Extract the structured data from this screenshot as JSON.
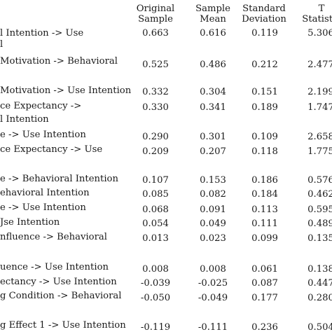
{
  "header": {
    "col1": [
      "Original",
      "Sample"
    ],
    "col2": [
      "Sample",
      "Mean"
    ],
    "col3": [
      "Standard",
      "Deviation"
    ],
    "col4": [
      "T",
      "Statistic"
    ]
  },
  "rows": [
    {
      "label": [
        "l       Intention   ->   Use",
        "l"
      ],
      "v": [
        "0.663",
        "0.616",
        "0.119",
        "5.306"
      ]
    },
    {
      "label": [
        "Motivation -> Behavioral"
      ],
      "v": [
        "0.525",
        "0.486",
        "0.212",
        "2.477"
      ]
    },
    {
      "label": [
        "Motivation -> Use Intention"
      ],
      "v": [
        "0.332",
        "0.304",
        "0.151",
        "2.199"
      ]
    },
    {
      "label": [
        "ce      Expectancy      ->",
        "l Intention"
      ],
      "v": [
        "0.330",
        "0.341",
        "0.189",
        "1.747"
      ]
    },
    {
      "label": [
        "e -> Use Intention"
      ],
      "v": [
        "0.290",
        "0.301",
        "0.109",
        "2.658"
      ]
    },
    {
      "label": [
        "ce    Expectancy   ->   Use"
      ],
      "v": [
        "0.209",
        "0.207",
        "0.118",
        "1.775"
      ]
    },
    {
      "label": [
        "e -> Behavioral Intention"
      ],
      "v": [
        "0.107",
        "0.153",
        "0.186",
        "0.576"
      ]
    },
    {
      "label": [
        "ehavioral Intention"
      ],
      "v": [
        "0.085",
        "0.082",
        "0.184",
        "0.462"
      ]
    },
    {
      "label": [
        "e -> Use Intention"
      ],
      "v": [
        "0.068",
        "0.091",
        "0.113",
        "0.595"
      ]
    },
    {
      "label": [
        "Jse Intention"
      ],
      "v": [
        "0.054",
        "0.049",
        "0.111",
        "0.489"
      ]
    },
    {
      "label": [
        "nfluence     ->     Behavioral"
      ],
      "v": [
        "0.013",
        "0.023",
        "0.099",
        "0.135"
      ]
    },
    {
      "label": [
        "uence -> Use Intention"
      ],
      "v": [
        "0.008",
        "0.008",
        "0.061",
        "0.138"
      ]
    },
    {
      "label": [
        "ectancy -> Use Intention"
      ],
      "v": [
        "-0.039",
        "-0.025",
        "0.087",
        "0.447"
      ]
    },
    {
      "label": [
        "g Condition -> Behavioral"
      ],
      "v": [
        "-0.050",
        "-0.049",
        "0.177",
        "0.280"
      ]
    },
    {
      "label": [
        "g Effect 1 -> Use Intention"
      ],
      "v": [
        "-0.119",
        "-0.111",
        "0.236",
        "0.504"
      ]
    }
  ]
}
